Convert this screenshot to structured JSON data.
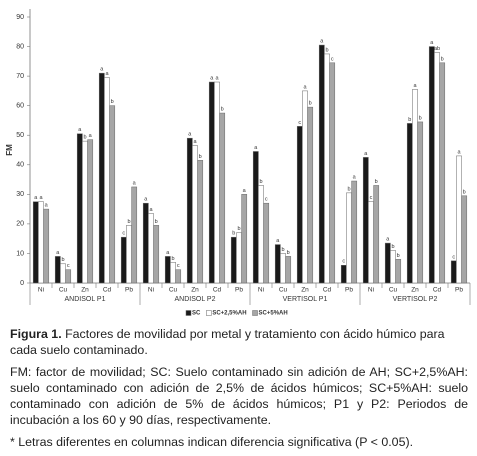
{
  "chart_data": {
    "type": "bar",
    "y_label": "FM",
    "categories": [
      "Ni",
      "Cu",
      "Zn",
      "Cd",
      "Pb",
      "Ni",
      "Cu",
      "Zn",
      "Cd",
      "Pb",
      "Ni",
      "Cu",
      "Zn",
      "Cd",
      "Pb",
      "Ni",
      "Cu",
      "Zn",
      "Cd",
      "Pb"
    ],
    "groups": [
      "ANDISOL P1",
      "ANDISOL P2",
      "VERTISOL P1",
      "VERTISOL P2"
    ],
    "series": [
      {
        "name": "SC",
        "color": "#1a1a1a",
        "values": [
          27.5,
          9,
          50.5,
          71,
          15.5,
          27,
          9,
          49,
          68,
          15.5,
          44.5,
          13,
          53,
          80.5,
          6,
          42.5,
          13.5,
          54,
          80,
          7.5
        ],
        "letters": [
          "a",
          "a",
          "a",
          "a",
          "c",
          "a",
          "a",
          "a",
          "a",
          "b",
          "a",
          "a",
          "c",
          "a",
          "c",
          "a",
          "a",
          "b",
          "a",
          "c"
        ]
      },
      {
        "name": "SC+2,5%AH",
        "color": "#ffffff",
        "values": [
          27.5,
          6.5,
          48,
          69.5,
          19.5,
          23.5,
          7,
          46.5,
          68,
          17,
          33,
          10,
          65,
          77.5,
          30.5,
          27.5,
          11,
          65.5,
          78,
          43
        ],
        "letters": [
          "a",
          "b",
          "b",
          "a",
          "b",
          "a",
          "b",
          "a",
          "a",
          "b",
          "b",
          "b",
          "a",
          "b",
          "b",
          "c",
          "b",
          "a",
          "ab",
          "a"
        ]
      },
      {
        "name": "SC+5%AH",
        "color": "#a6a6a6",
        "values": [
          25,
          4.5,
          48.5,
          60,
          32.5,
          19.5,
          4.5,
          41.5,
          57.5,
          30,
          27,
          9,
          59.5,
          74.5,
          34.5,
          33,
          8,
          54.5,
          74.5,
          29.5
        ],
        "letters": [
          "a",
          "c",
          "a",
          "b",
          "a",
          "b",
          "c",
          "b",
          "b",
          "a",
          "c",
          "b",
          "b",
          "c",
          "a",
          "b",
          "b",
          "b",
          "b",
          "b"
        ]
      }
    ],
    "ylim": [
      0,
      90
    ],
    "yticks": [
      0,
      10,
      20,
      30,
      40,
      50,
      60,
      70,
      80,
      90
    ],
    "grid": false
  },
  "caption": {
    "figure_label": "Figura 1.",
    "title": "Factores de movilidad por metal y tratamiento con ácido húmico para cada suelo contaminado.",
    "abbreviations": "FM: factor de movilidad; SC: Suelo contaminado sin adición de AH; SC+2,5%AH: suelo contaminado con adición de 2,5% de ácidos húmicos; SC+5%AH: suelo contaminado con adición de 5% de ácidos húmicos; P1 y P2: Periodos de incubación a los 60 y 90 días, respectivamente.",
    "note": "* Letras diferentes en columnas indican diferencia significativa (P < 0.05)."
  }
}
